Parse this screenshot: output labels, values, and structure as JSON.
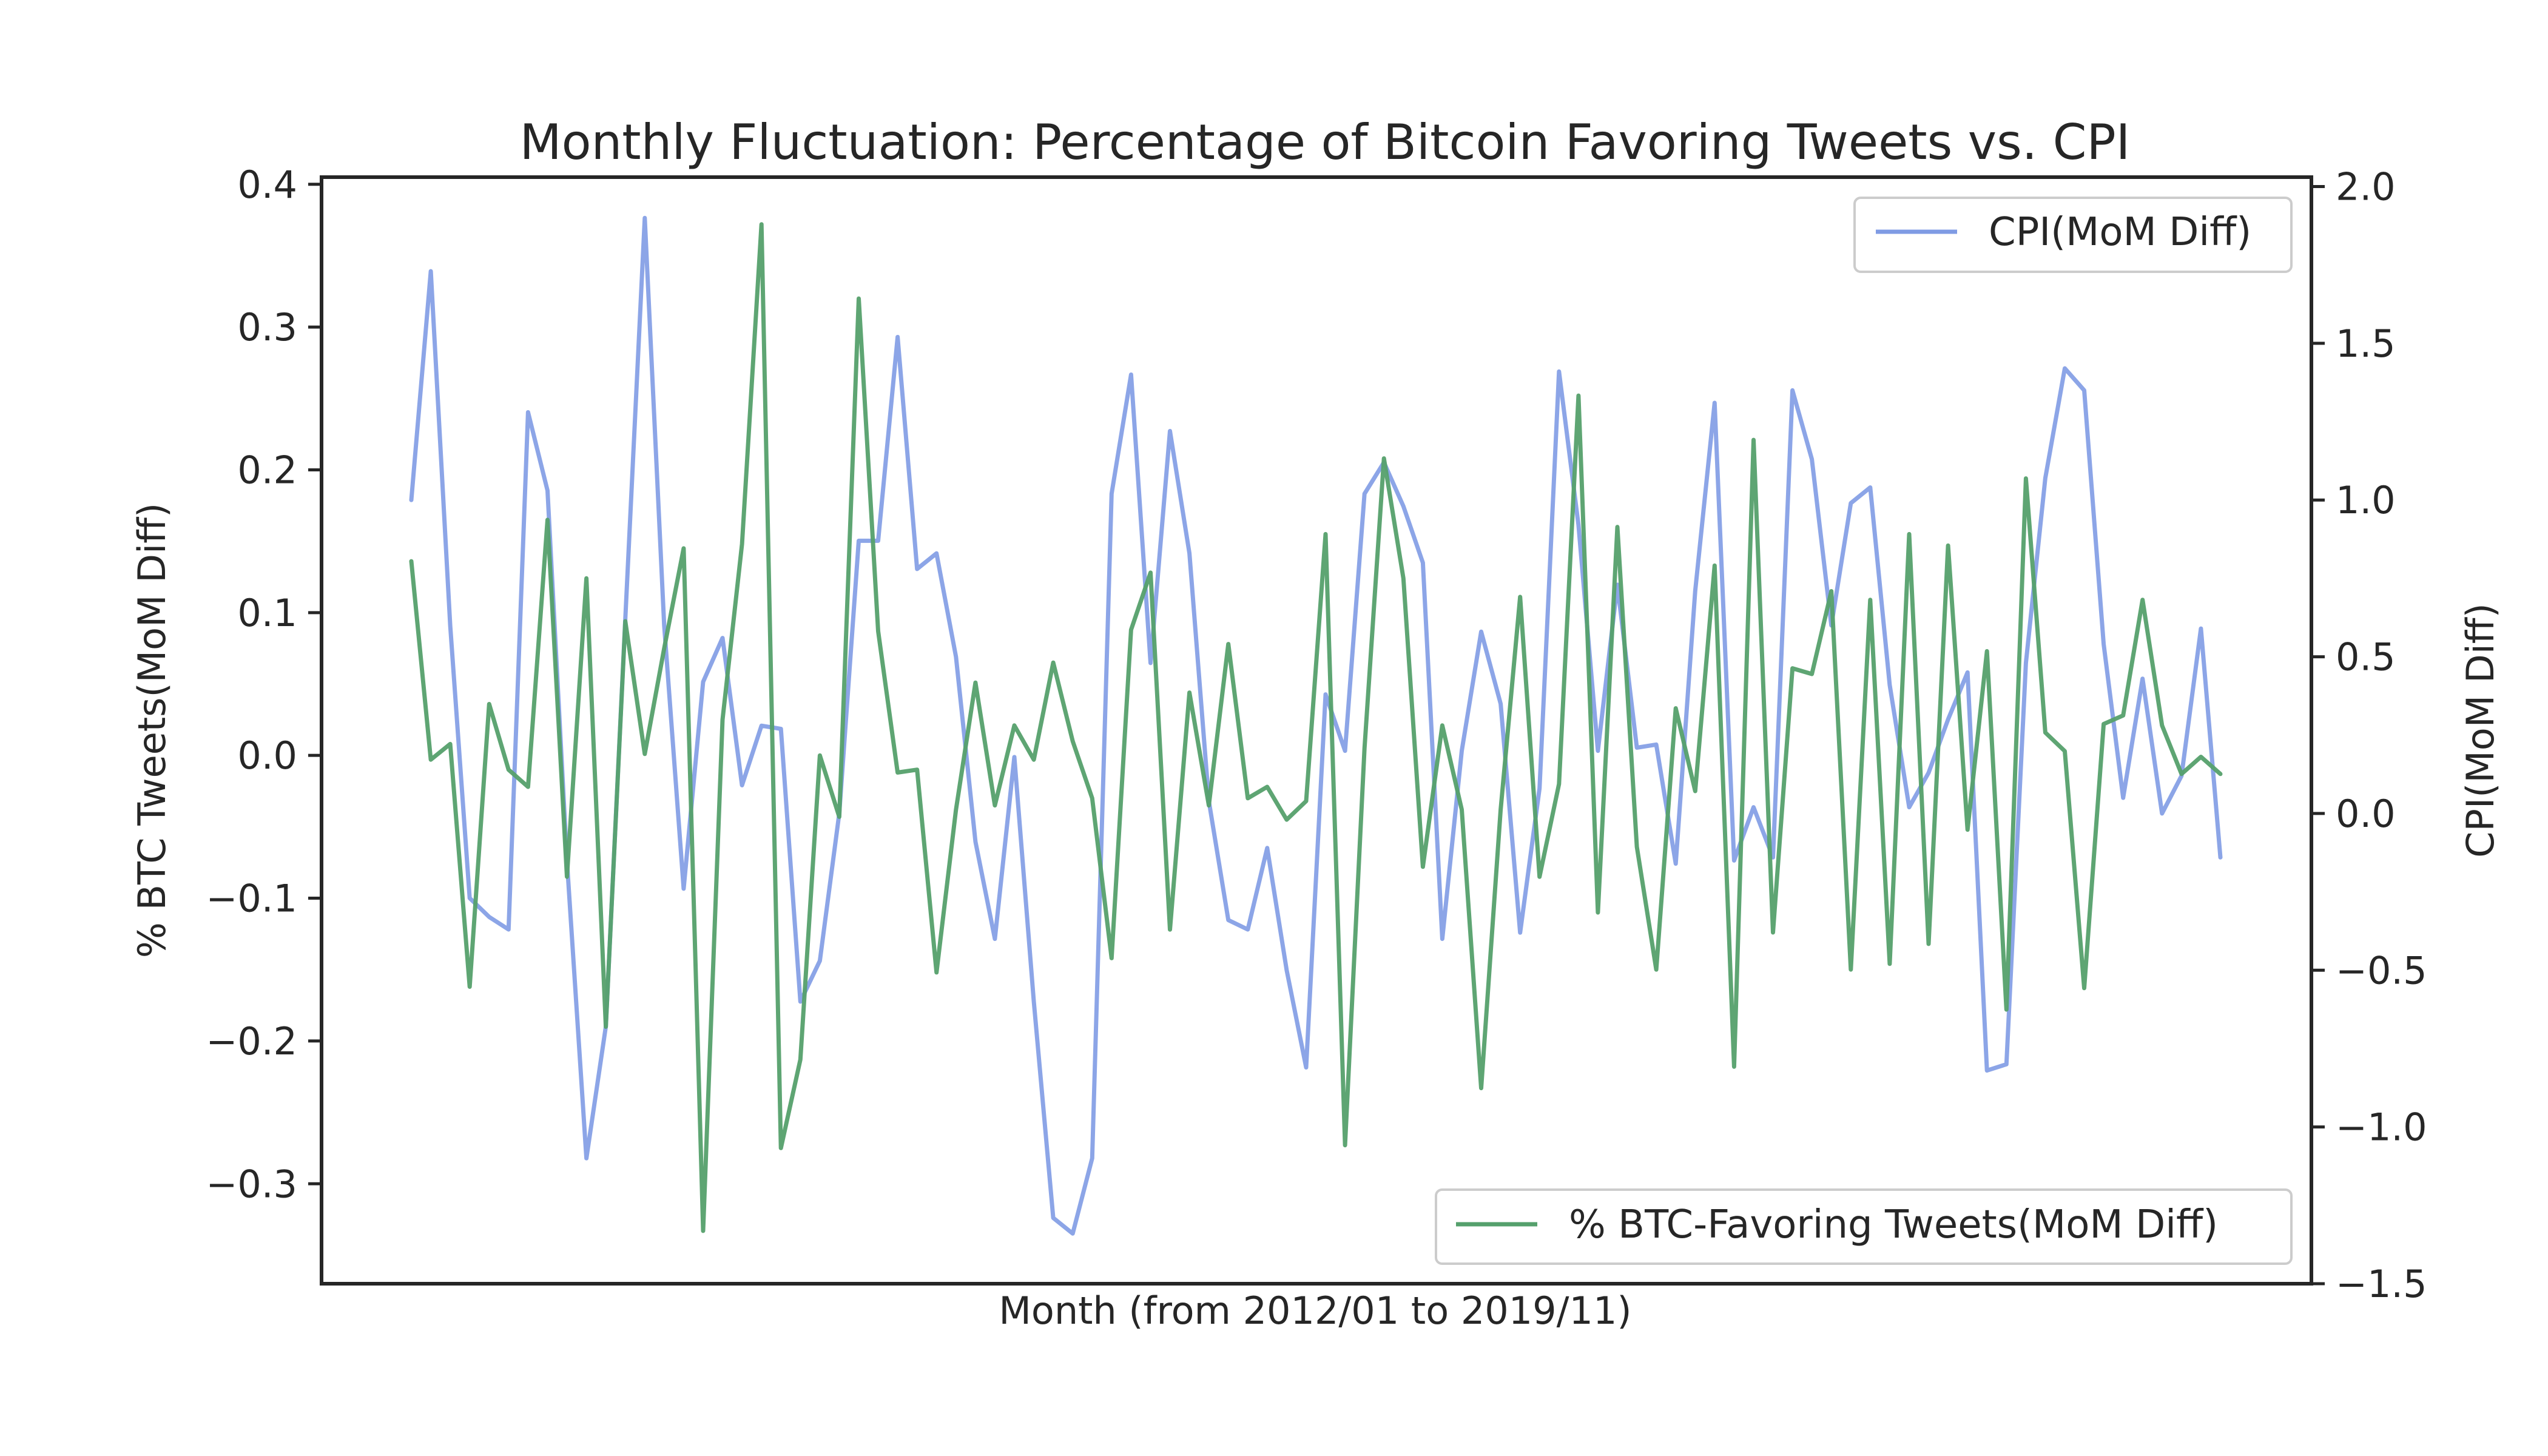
{
  "chart_data": {
    "type": "line",
    "title": "Monthly Fluctuation: Percentage of Bitcoin Favoring Tweets vs. CPI",
    "xlabel": "Month (from 2012/01 to 2019/11)",
    "ylabel_left": "% BTC Tweets(MoM Diff)",
    "ylabel_right": "CPI(MoM Diff)",
    "ylim_left": [
      -0.37,
      0.405
    ],
    "ylim_right": [
      -1.5,
      2.03
    ],
    "yticks_left": [
      {
        "value": 0.4,
        "label": "0.4"
      },
      {
        "value": 0.3,
        "label": "0.3"
      },
      {
        "value": 0.2,
        "label": "0.2"
      },
      {
        "value": 0.1,
        "label": "0.1"
      },
      {
        "value": 0.0,
        "label": "0.0"
      },
      {
        "value": -0.1,
        "label": "−0.1"
      },
      {
        "value": -0.2,
        "label": "−0.2"
      },
      {
        "value": -0.3,
        "label": "−0.3"
      }
    ],
    "yticks_right": [
      {
        "value": 2.0,
        "label": "2.0"
      },
      {
        "value": 1.5,
        "label": "1.5"
      },
      {
        "value": 1.0,
        "label": "1.0"
      },
      {
        "value": 0.5,
        "label": "0.5"
      },
      {
        "value": 0.0,
        "label": "0.0"
      },
      {
        "value": -0.5,
        "label": "−0.5"
      },
      {
        "value": -1.0,
        "label": "−1.0"
      },
      {
        "value": -1.5,
        "label": "−1.5"
      }
    ],
    "grid": false,
    "series": [
      {
        "name": "CPI(MoM Diff)",
        "axis": "right",
        "color": "#7f9be4",
        "legend_position": "top-right",
        "values": [
          1.0,
          1.73,
          0.6,
          -0.27,
          -0.33,
          -0.37,
          1.28,
          1.03,
          -0.15,
          -1.1,
          -0.68,
          0.62,
          1.9,
          0.6,
          -0.24,
          0.42,
          0.56,
          0.09,
          0.28,
          0.27,
          -0.6,
          -0.47,
          0.0,
          0.87,
          0.87,
          1.52,
          0.78,
          0.83,
          0.5,
          -0.09,
          -0.4,
          0.18,
          -0.6,
          -1.29,
          -1.34,
          -1.1,
          1.02,
          1.4,
          0.48,
          1.22,
          0.83,
          0.04,
          -0.34,
          -0.37,
          -0.11,
          -0.5,
          -0.81,
          0.38,
          0.2,
          1.02,
          1.12,
          0.98,
          0.8,
          -0.4,
          0.2,
          0.58,
          0.35,
          -0.38,
          0.08,
          1.41,
          0.92,
          0.2,
          0.73,
          0.21,
          0.22,
          -0.16,
          0.71,
          1.31,
          -0.15,
          0.02,
          -0.14,
          1.35,
          1.13,
          0.6,
          0.99,
          1.04,
          0.41,
          0.02,
          0.13,
          0.3,
          0.45,
          -0.82,
          -0.8,
          0.48,
          1.07,
          1.42,
          1.35,
          0.54,
          0.05,
          0.43,
          0.0,
          0.12,
          0.59,
          -0.14
        ]
      },
      {
        "name": "% BTC-Favoring Tweets(MoM Diff)",
        "axis": "left",
        "color": "#55a06c",
        "legend_position": "bottom-right",
        "values": [
          0.136,
          -0.003,
          0.008,
          -0.162,
          0.036,
          -0.01,
          -0.022,
          0.165,
          -0.085,
          0.124,
          -0.19,
          0.094,
          0.001,
          0.075,
          0.145,
          -0.333,
          0.025,
          0.148,
          0.372,
          -0.275,
          -0.213,
          0.0,
          -0.043,
          0.32,
          0.087,
          -0.012,
          -0.01,
          -0.152,
          -0.038,
          0.051,
          -0.035,
          0.021,
          -0.003,
          0.065,
          0.01,
          -0.03,
          -0.142,
          0.088,
          0.128,
          -0.122,
          0.044,
          -0.035,
          0.078,
          -0.03,
          -0.022,
          -0.045,
          -0.032,
          0.155,
          -0.273,
          0.005,
          0.208,
          0.124,
          -0.078,
          0.021,
          -0.038,
          -0.233,
          -0.038,
          0.111,
          -0.085,
          -0.02,
          0.252,
          -0.11,
          0.16,
          -0.064,
          -0.15,
          0.033,
          -0.025,
          0.133,
          -0.218,
          0.221,
          -0.124,
          0.061,
          0.057,
          0.115,
          -0.15,
          0.109,
          -0.146,
          0.155,
          -0.132,
          0.147,
          -0.052,
          0.073,
          -0.178,
          0.194,
          0.016,
          0.003,
          -0.163,
          0.022,
          0.028,
          0.109,
          0.021,
          -0.013,
          -0.001,
          -0.013
        ]
      }
    ]
  }
}
